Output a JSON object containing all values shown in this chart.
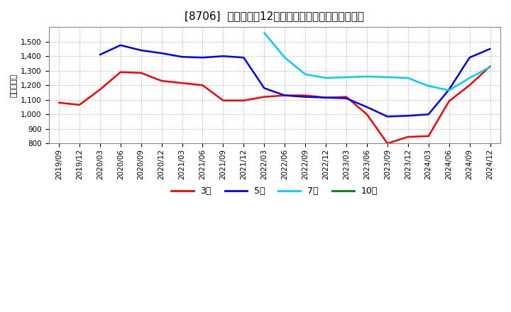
{
  "title": "[8706]  当期純利益12か月移動合計の標準偏差の推移",
  "ylabel": "（百万円）",
  "ylim": [
    800,
    1600
  ],
  "yticks": [
    800,
    900,
    1000,
    1100,
    1200,
    1300,
    1400,
    1500
  ],
  "background_color": "#ffffff",
  "plot_bg_color": "#ffffff",
  "grid_color": "#aaaaaa",
  "series": {
    "3年": {
      "color": "#ff0000",
      "data": [
        [
          "2019/09",
          1080
        ],
        [
          "2019/12",
          1065
        ],
        [
          "2020/03",
          1170
        ],
        [
          "2020/06",
          1290
        ],
        [
          "2020/09",
          1285
        ],
        [
          "2020/12",
          1230
        ],
        [
          "2021/03",
          1215
        ],
        [
          "2021/06",
          1200
        ],
        [
          "2021/09",
          1095
        ],
        [
          "2021/12",
          1095
        ],
        [
          "2022/03",
          1120
        ],
        [
          "2022/06",
          1130
        ],
        [
          "2022/09",
          1130
        ],
        [
          "2022/12",
          1115
        ],
        [
          "2023/03",
          1120
        ],
        [
          "2023/06",
          1000
        ],
        [
          "2023/09",
          800
        ],
        [
          "2023/12",
          845
        ],
        [
          "2024/03",
          850
        ],
        [
          "2024/06",
          1090
        ],
        [
          "2024/09",
          1200
        ],
        [
          "2024/12",
          1330
        ]
      ]
    },
    "5年": {
      "color": "#0000ff",
      "data": [
        [
          "2019/09",
          null
        ],
        [
          "2019/12",
          null
        ],
        [
          "2020/03",
          1410
        ],
        [
          "2020/06",
          1475
        ],
        [
          "2020/09",
          1440
        ],
        [
          "2020/12",
          1420
        ],
        [
          "2021/03",
          1395
        ],
        [
          "2021/06",
          1390
        ],
        [
          "2021/09",
          1400
        ],
        [
          "2021/12",
          1390
        ],
        [
          "2022/03",
          1180
        ],
        [
          "2022/06",
          1130
        ],
        [
          "2022/09",
          1120
        ],
        [
          "2022/12",
          1115
        ],
        [
          "2023/03",
          1110
        ],
        [
          "2023/06",
          1050
        ],
        [
          "2023/09",
          985
        ],
        [
          "2023/12",
          990
        ],
        [
          "2024/03",
          1000
        ],
        [
          "2024/06",
          1170
        ],
        [
          "2024/09",
          1390
        ],
        [
          "2024/12",
          1450
        ]
      ]
    },
    "7年": {
      "color": "#00ccff",
      "data": [
        [
          "2019/09",
          null
        ],
        [
          "2019/12",
          null
        ],
        [
          "2020/03",
          null
        ],
        [
          "2020/06",
          null
        ],
        [
          "2020/09",
          null
        ],
        [
          "2020/12",
          null
        ],
        [
          "2021/03",
          null
        ],
        [
          "2021/06",
          null
        ],
        [
          "2021/09",
          null
        ],
        [
          "2021/12",
          null
        ],
        [
          "2022/03",
          1560
        ],
        [
          "2022/06",
          1390
        ],
        [
          "2022/09",
          1275
        ],
        [
          "2022/12",
          1250
        ],
        [
          "2023/03",
          1255
        ],
        [
          "2023/06",
          1260
        ],
        [
          "2023/09",
          1255
        ],
        [
          "2023/12",
          1250
        ],
        [
          "2024/03",
          1195
        ],
        [
          "2024/06",
          1165
        ],
        [
          "2024/09",
          1250
        ],
        [
          "2024/12",
          1325
        ]
      ]
    },
    "10年": {
      "color": "#008000",
      "data": [
        [
          "2019/09",
          null
        ],
        [
          "2019/12",
          null
        ],
        [
          "2020/03",
          null
        ],
        [
          "2020/06",
          null
        ],
        [
          "2020/09",
          null
        ],
        [
          "2020/12",
          null
        ],
        [
          "2021/03",
          null
        ],
        [
          "2021/06",
          null
        ],
        [
          "2021/09",
          null
        ],
        [
          "2021/12",
          null
        ],
        [
          "2022/03",
          null
        ],
        [
          "2022/06",
          null
        ],
        [
          "2022/09",
          null
        ],
        [
          "2022/12",
          null
        ],
        [
          "2023/03",
          null
        ],
        [
          "2023/06",
          null
        ],
        [
          "2023/09",
          null
        ],
        [
          "2023/12",
          null
        ],
        [
          "2024/03",
          null
        ],
        [
          "2024/06",
          null
        ],
        [
          "2024/09",
          null
        ],
        [
          "2024/12",
          null
        ]
      ]
    }
  },
  "x_tick_labels": [
    "2019/09",
    "2019/12",
    "2020/03",
    "2020/06",
    "2020/09",
    "2020/12",
    "2021/03",
    "2021/06",
    "2021/09",
    "2021/12",
    "2022/03",
    "2022/06",
    "2022/09",
    "2022/12",
    "2023/03",
    "2023/06",
    "2023/09",
    "2023/12",
    "2024/03",
    "2024/06",
    "2024/09",
    "2024/12"
  ],
  "legend_labels": [
    "3年",
    "5年",
    "7年",
    "10年"
  ],
  "legend_colors": [
    "#ff0000",
    "#0000ff",
    "#00ccff",
    "#008000"
  ],
  "title_fontsize": 11,
  "axis_fontsize": 8,
  "tick_fontsize": 7.5,
  "legend_fontsize": 9
}
